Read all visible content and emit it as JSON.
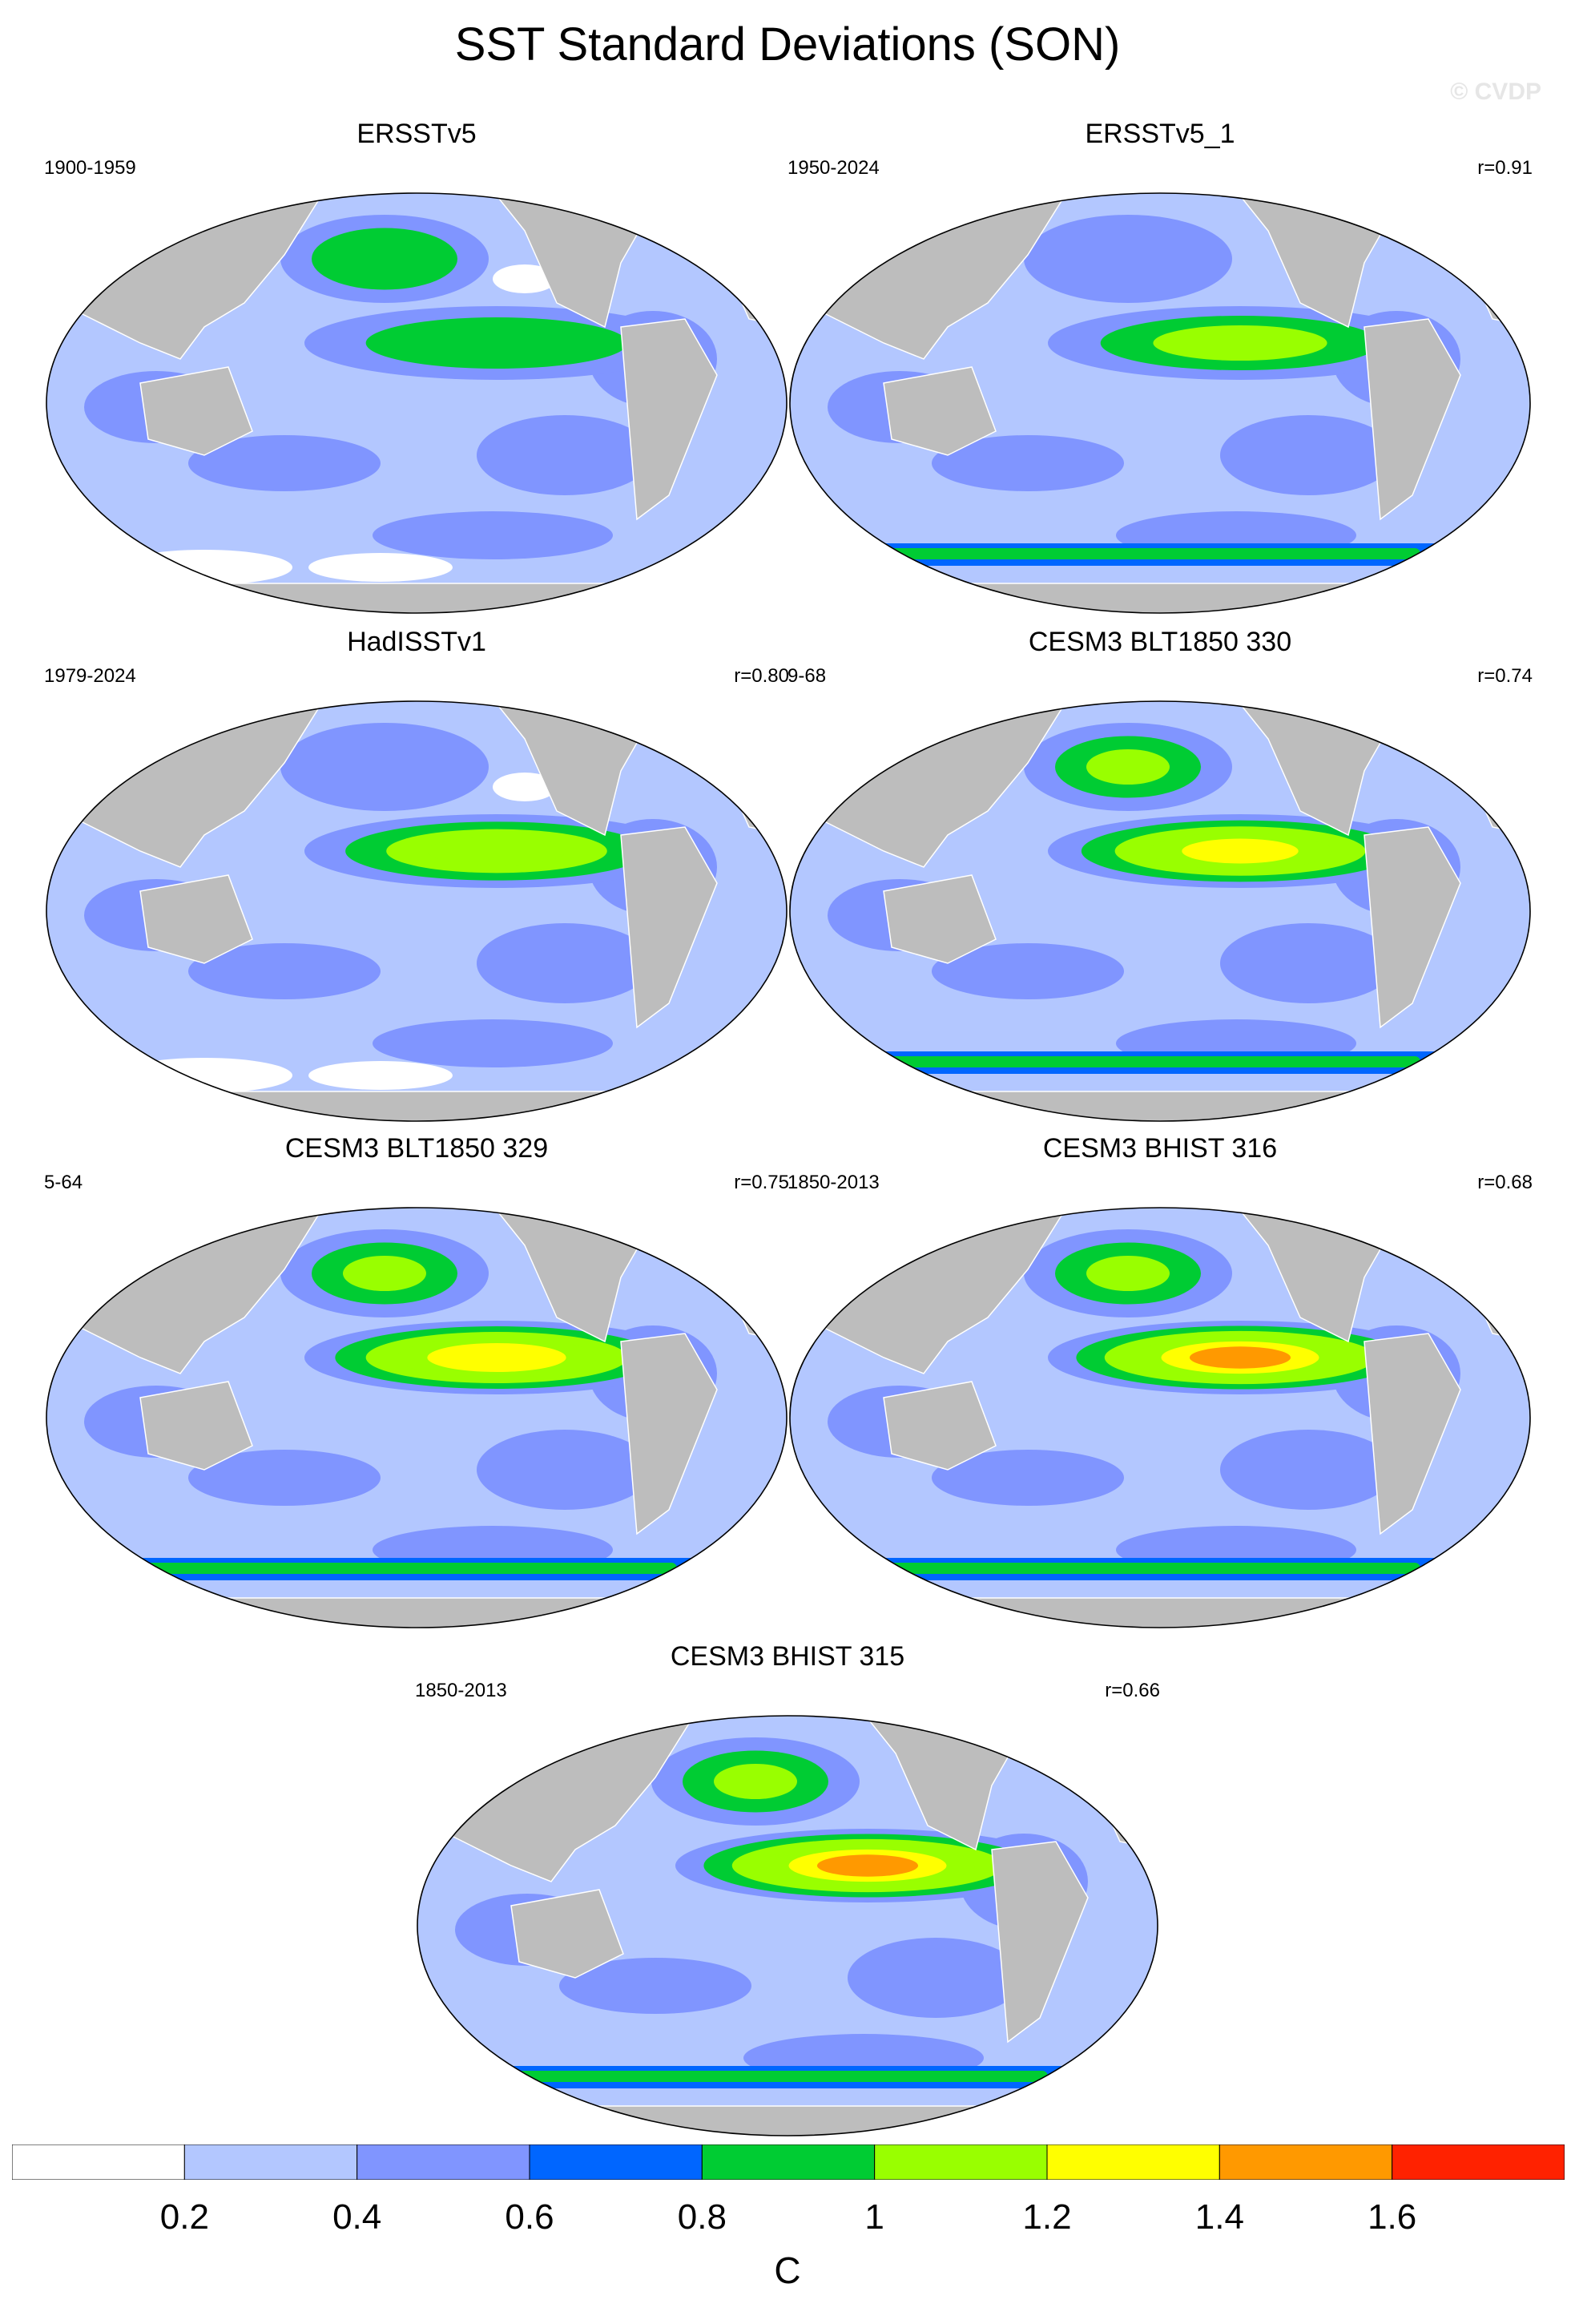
{
  "title": "SST Standard Deviations (SON)",
  "watermark": "© CVDP",
  "panels": [
    {
      "title": "ERSSTv5",
      "years": "1900-1959",
      "corr": "",
      "enso": 0.9,
      "npac": 0.8,
      "sparse": true
    },
    {
      "title": "ERSSTv5_1",
      "years": "1950-2024",
      "corr": "r=0.91",
      "enso": 1.0,
      "npac": 0.7,
      "sparse": false
    },
    {
      "title": "HadISSTv1",
      "years": "1979-2024",
      "corr": "r=0.80",
      "enso": 1.2,
      "npac": 0.6,
      "sparse": true
    },
    {
      "title": "CESM3 BLT1850 330",
      "years": "9-68",
      "corr": "r=0.74",
      "enso": 1.4,
      "npac": 1.0,
      "sparse": false
    },
    {
      "title": "CESM3 BLT1850 329",
      "years": "5-64",
      "corr": "r=0.75",
      "enso": 1.5,
      "npac": 1.0,
      "sparse": false
    },
    {
      "title": "CESM3 BHIST 316",
      "years": "1850-2013",
      "corr": "r=0.68",
      "enso": 1.6,
      "npac": 1.0,
      "sparse": false
    },
    {
      "title": "CESM3 BHIST 315",
      "years": "1850-2013",
      "corr": "r=0.66",
      "enso": 1.6,
      "npac": 1.0,
      "sparse": false
    }
  ],
  "colorbar": {
    "colors": [
      "#ffffff",
      "#b3c7ff",
      "#8095ff",
      "#0066ff",
      "#00cc33",
      "#99ff00",
      "#ffff00",
      "#ff9900",
      "#ff2200"
    ],
    "tick_labels": [
      "0.2",
      "0.4",
      "0.6",
      "0.8",
      "1",
      "1.2",
      "1.4",
      "1.6"
    ],
    "unit": "C"
  }
}
